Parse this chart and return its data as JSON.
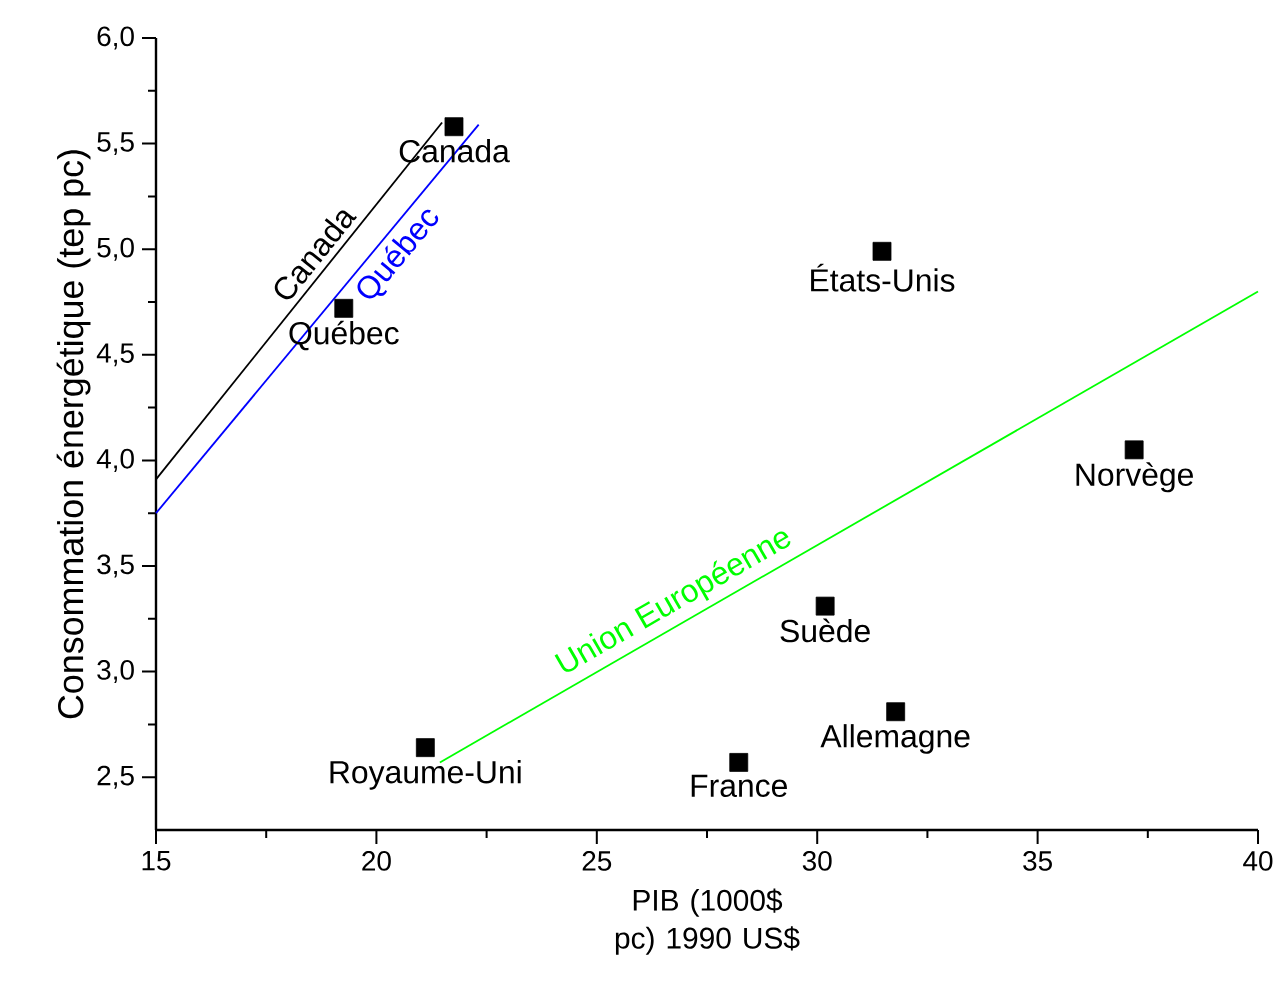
{
  "chart_data": {
    "type": "scatter",
    "xlabel": "PIB (1000$ pc) 1990 US$",
    "ylabel": "Consommation énergétique (tep pc)",
    "xlim": [
      15,
      40
    ],
    "ylim": [
      2.25,
      6.0
    ],
    "xticks": [
      15,
      20,
      25,
      30,
      35,
      40
    ],
    "yticks": [
      {
        "value": 2.5,
        "label": "2,5"
      },
      {
        "value": 3.0,
        "label": "3,0"
      },
      {
        "value": 3.5,
        "label": "3,5"
      },
      {
        "value": 4.0,
        "label": "4,0"
      },
      {
        "value": 4.5,
        "label": "4,5"
      },
      {
        "value": 5.0,
        "label": "5,0"
      },
      {
        "value": 5.5,
        "label": "5,5"
      },
      {
        "value": 6.0,
        "label": "6,0"
      }
    ],
    "series": [
      {
        "color": "#000000",
        "marker": "square",
        "x": [
          21.76,
          19.26,
          31.47,
          37.19,
          30.18,
          31.78,
          28.22,
          21.11
        ],
        "values": [
          5.58,
          4.72,
          4.99,
          4.05,
          3.31,
          2.81,
          2.57,
          2.64
        ]
      },
      {
        "type": "line",
        "name": "Canada",
        "color": "#000000",
        "x": [
          15,
          21.49
        ],
        "values": [
          3.91,
          5.6
        ]
      },
      {
        "type": "line",
        "name": "Québec",
        "color": "#0000ff",
        "x": [
          15,
          22.32
        ],
        "values": [
          3.75,
          5.59
        ]
      },
      {
        "type": "line",
        "name": "Union Européenne",
        "color": "#00ff00",
        "x": [
          21.44,
          40
        ],
        "values": [
          2.57,
          4.8
        ]
      }
    ],
    "annotations": [
      {
        "text": "Canada",
        "x": 21.76,
        "y": 5.58
      },
      {
        "text": "Québec",
        "x": 19.26,
        "y": 4.72
      },
      {
        "text": "États-Unis",
        "x": 31.47,
        "y": 4.99
      },
      {
        "text": "Norvège",
        "x": 37.19,
        "y": 4.05
      },
      {
        "text": "Suède",
        "x": 30.18,
        "y": 3.31
      },
      {
        "text": "Allemagne",
        "x": 31.78,
        "y": 2.81
      },
      {
        "text": "France",
        "x": 28.22,
        "y": 2.57
      },
      {
        "text": "Royaume-Uni",
        "x": 21.11,
        "y": 2.64
      }
    ]
  }
}
